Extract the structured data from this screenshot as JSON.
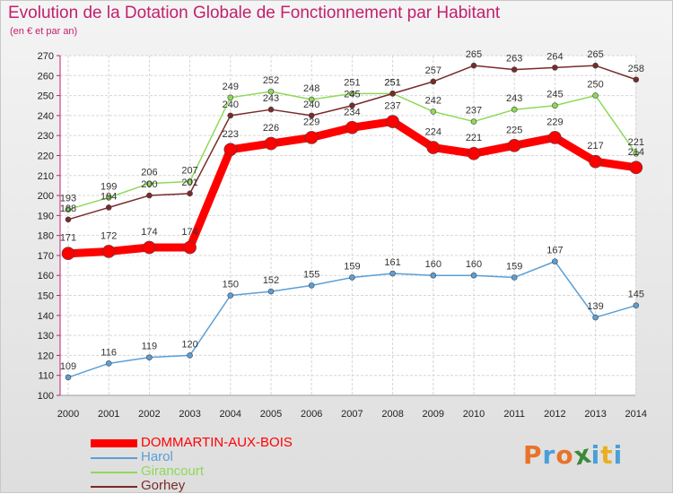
{
  "header": {
    "title": "Evolution de la Dotation Globale de Fonctionnement par Habitant",
    "subtitle": "(en € et par an)"
  },
  "logo": {
    "text": "Proxiti",
    "letter_colors": [
      "#e8732a",
      "#4a9fd8",
      "#e8732a",
      "#3a8a3a",
      "#4a9fd8",
      "#e8b020",
      "#4a9fd8"
    ]
  },
  "colors": {
    "title": "#c2206e",
    "DOMMARTIN-AUX-BOIS": "#ff0000",
    "Harol": "#5b9fd6",
    "Girancourt": "#8fd957",
    "Gorhey": "#7a2a2a"
  },
  "chart_data": {
    "type": "line",
    "x": [
      2000,
      2001,
      2002,
      2003,
      2004,
      2005,
      2006,
      2007,
      2008,
      2009,
      2010,
      2011,
      2012,
      2013,
      2014
    ],
    "ylim": [
      100,
      270
    ],
    "yticks": [
      100,
      110,
      120,
      130,
      140,
      150,
      160,
      170,
      180,
      190,
      200,
      210,
      220,
      230,
      240,
      250,
      260,
      270
    ],
    "grid": true,
    "legend_position": "bottom-left",
    "series": [
      {
        "name": "DOMMARTIN-AUX-BOIS",
        "values": [
          171,
          172,
          174,
          174,
          223,
          226,
          229,
          234,
          237,
          224,
          221,
          225,
          229,
          217,
          214
        ]
      },
      {
        "name": "Harol",
        "values": [
          109,
          116,
          119,
          120,
          150,
          152,
          155,
          159,
          161,
          160,
          160,
          159,
          167,
          139,
          145
        ]
      },
      {
        "name": "Girancourt",
        "values": [
          193,
          199,
          206,
          207,
          249,
          252,
          248,
          251,
          251,
          242,
          237,
          243,
          245,
          250,
          221
        ]
      },
      {
        "name": "Gorhey",
        "values": [
          188,
          194,
          200,
          201,
          240,
          243,
          240,
          245,
          251,
          257,
          265,
          263,
          264,
          265,
          258
        ]
      }
    ]
  }
}
